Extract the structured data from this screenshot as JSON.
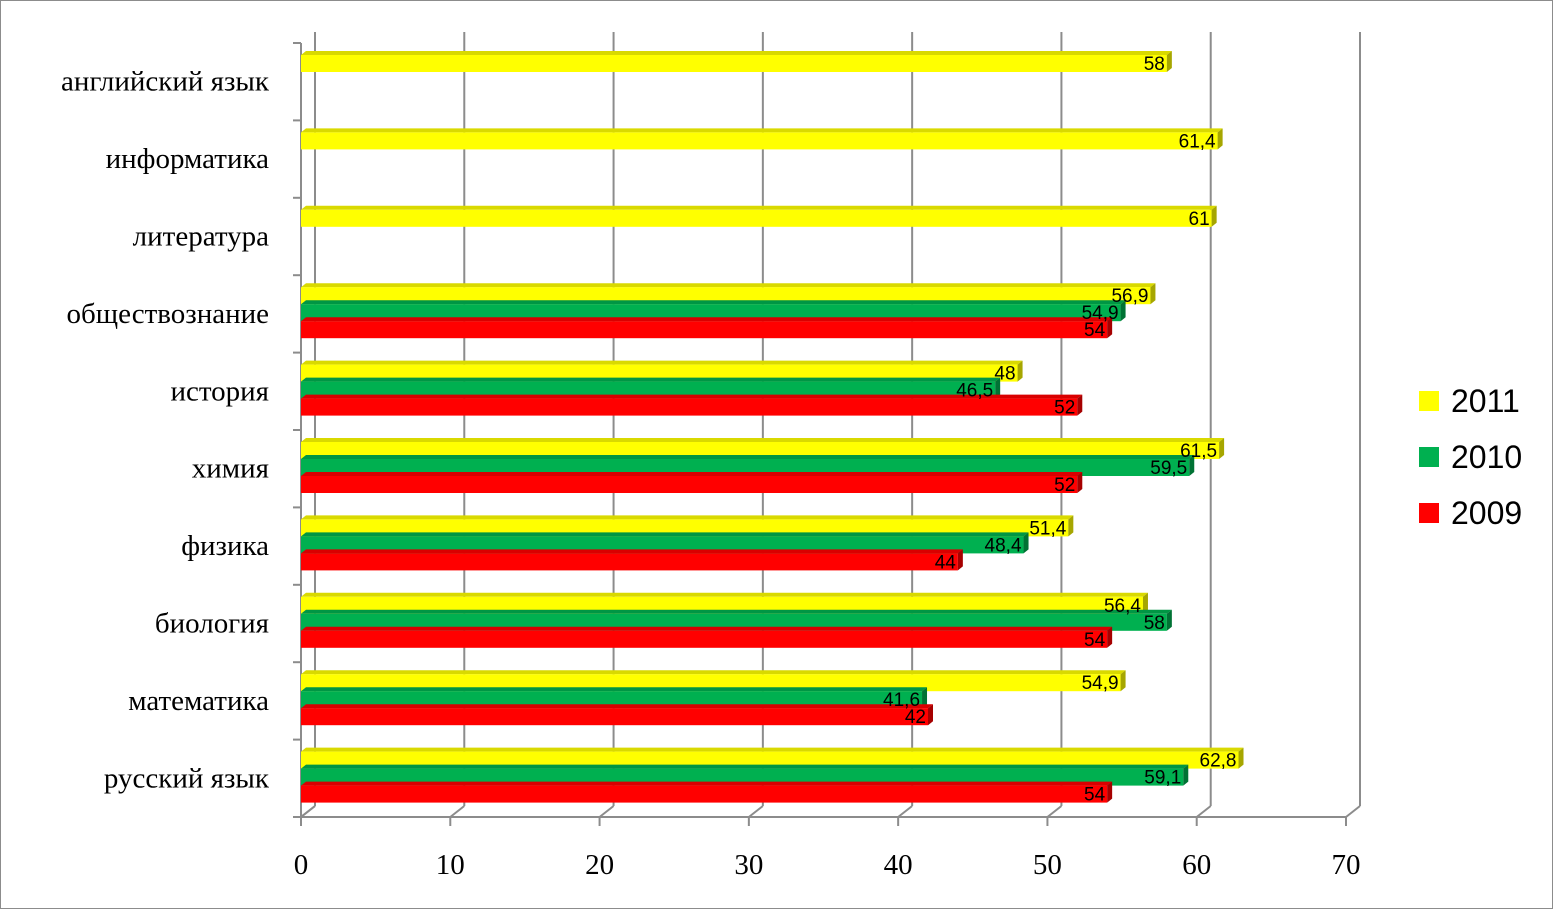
{
  "chart_data": {
    "type": "bar",
    "orientation": "horizontal",
    "categories": [
      "русский язык",
      "математика",
      "биология",
      "физика",
      "химия",
      "история",
      "обществознание",
      "литература",
      "информатика",
      "английский язык"
    ],
    "series": [
      {
        "name": "2011",
        "color": "#ffff00",
        "values": [
          62.8,
          54.9,
          56.4,
          51.4,
          61.5,
          48,
          56.9,
          61,
          61.4,
          58
        ],
        "labels": [
          "62,8",
          "54,9",
          "56,4",
          "51,4",
          "61,5",
          "48",
          "56,9",
          "61",
          "61,4",
          "58"
        ]
      },
      {
        "name": "2010",
        "color": "#00b050",
        "values": [
          59.1,
          41.6,
          58,
          48.4,
          59.5,
          46.5,
          54.9,
          null,
          null,
          null
        ],
        "labels": [
          "59,1",
          "41,6",
          "58",
          "48,4",
          "59,5",
          "46,5",
          "54,9",
          null,
          null,
          null
        ]
      },
      {
        "name": "2009",
        "color": "#ff0000",
        "values": [
          54,
          42,
          54,
          44,
          52,
          52,
          54,
          null,
          null,
          null
        ],
        "labels": [
          "54",
          "42",
          "54",
          "44",
          "52",
          "52",
          "54",
          null,
          null,
          null
        ]
      }
    ],
    "xlim": [
      0,
      70
    ],
    "xticks": [
      "0",
      "10",
      "20",
      "30",
      "40",
      "50",
      "60",
      "70"
    ],
    "grid": true,
    "legend": "right"
  }
}
